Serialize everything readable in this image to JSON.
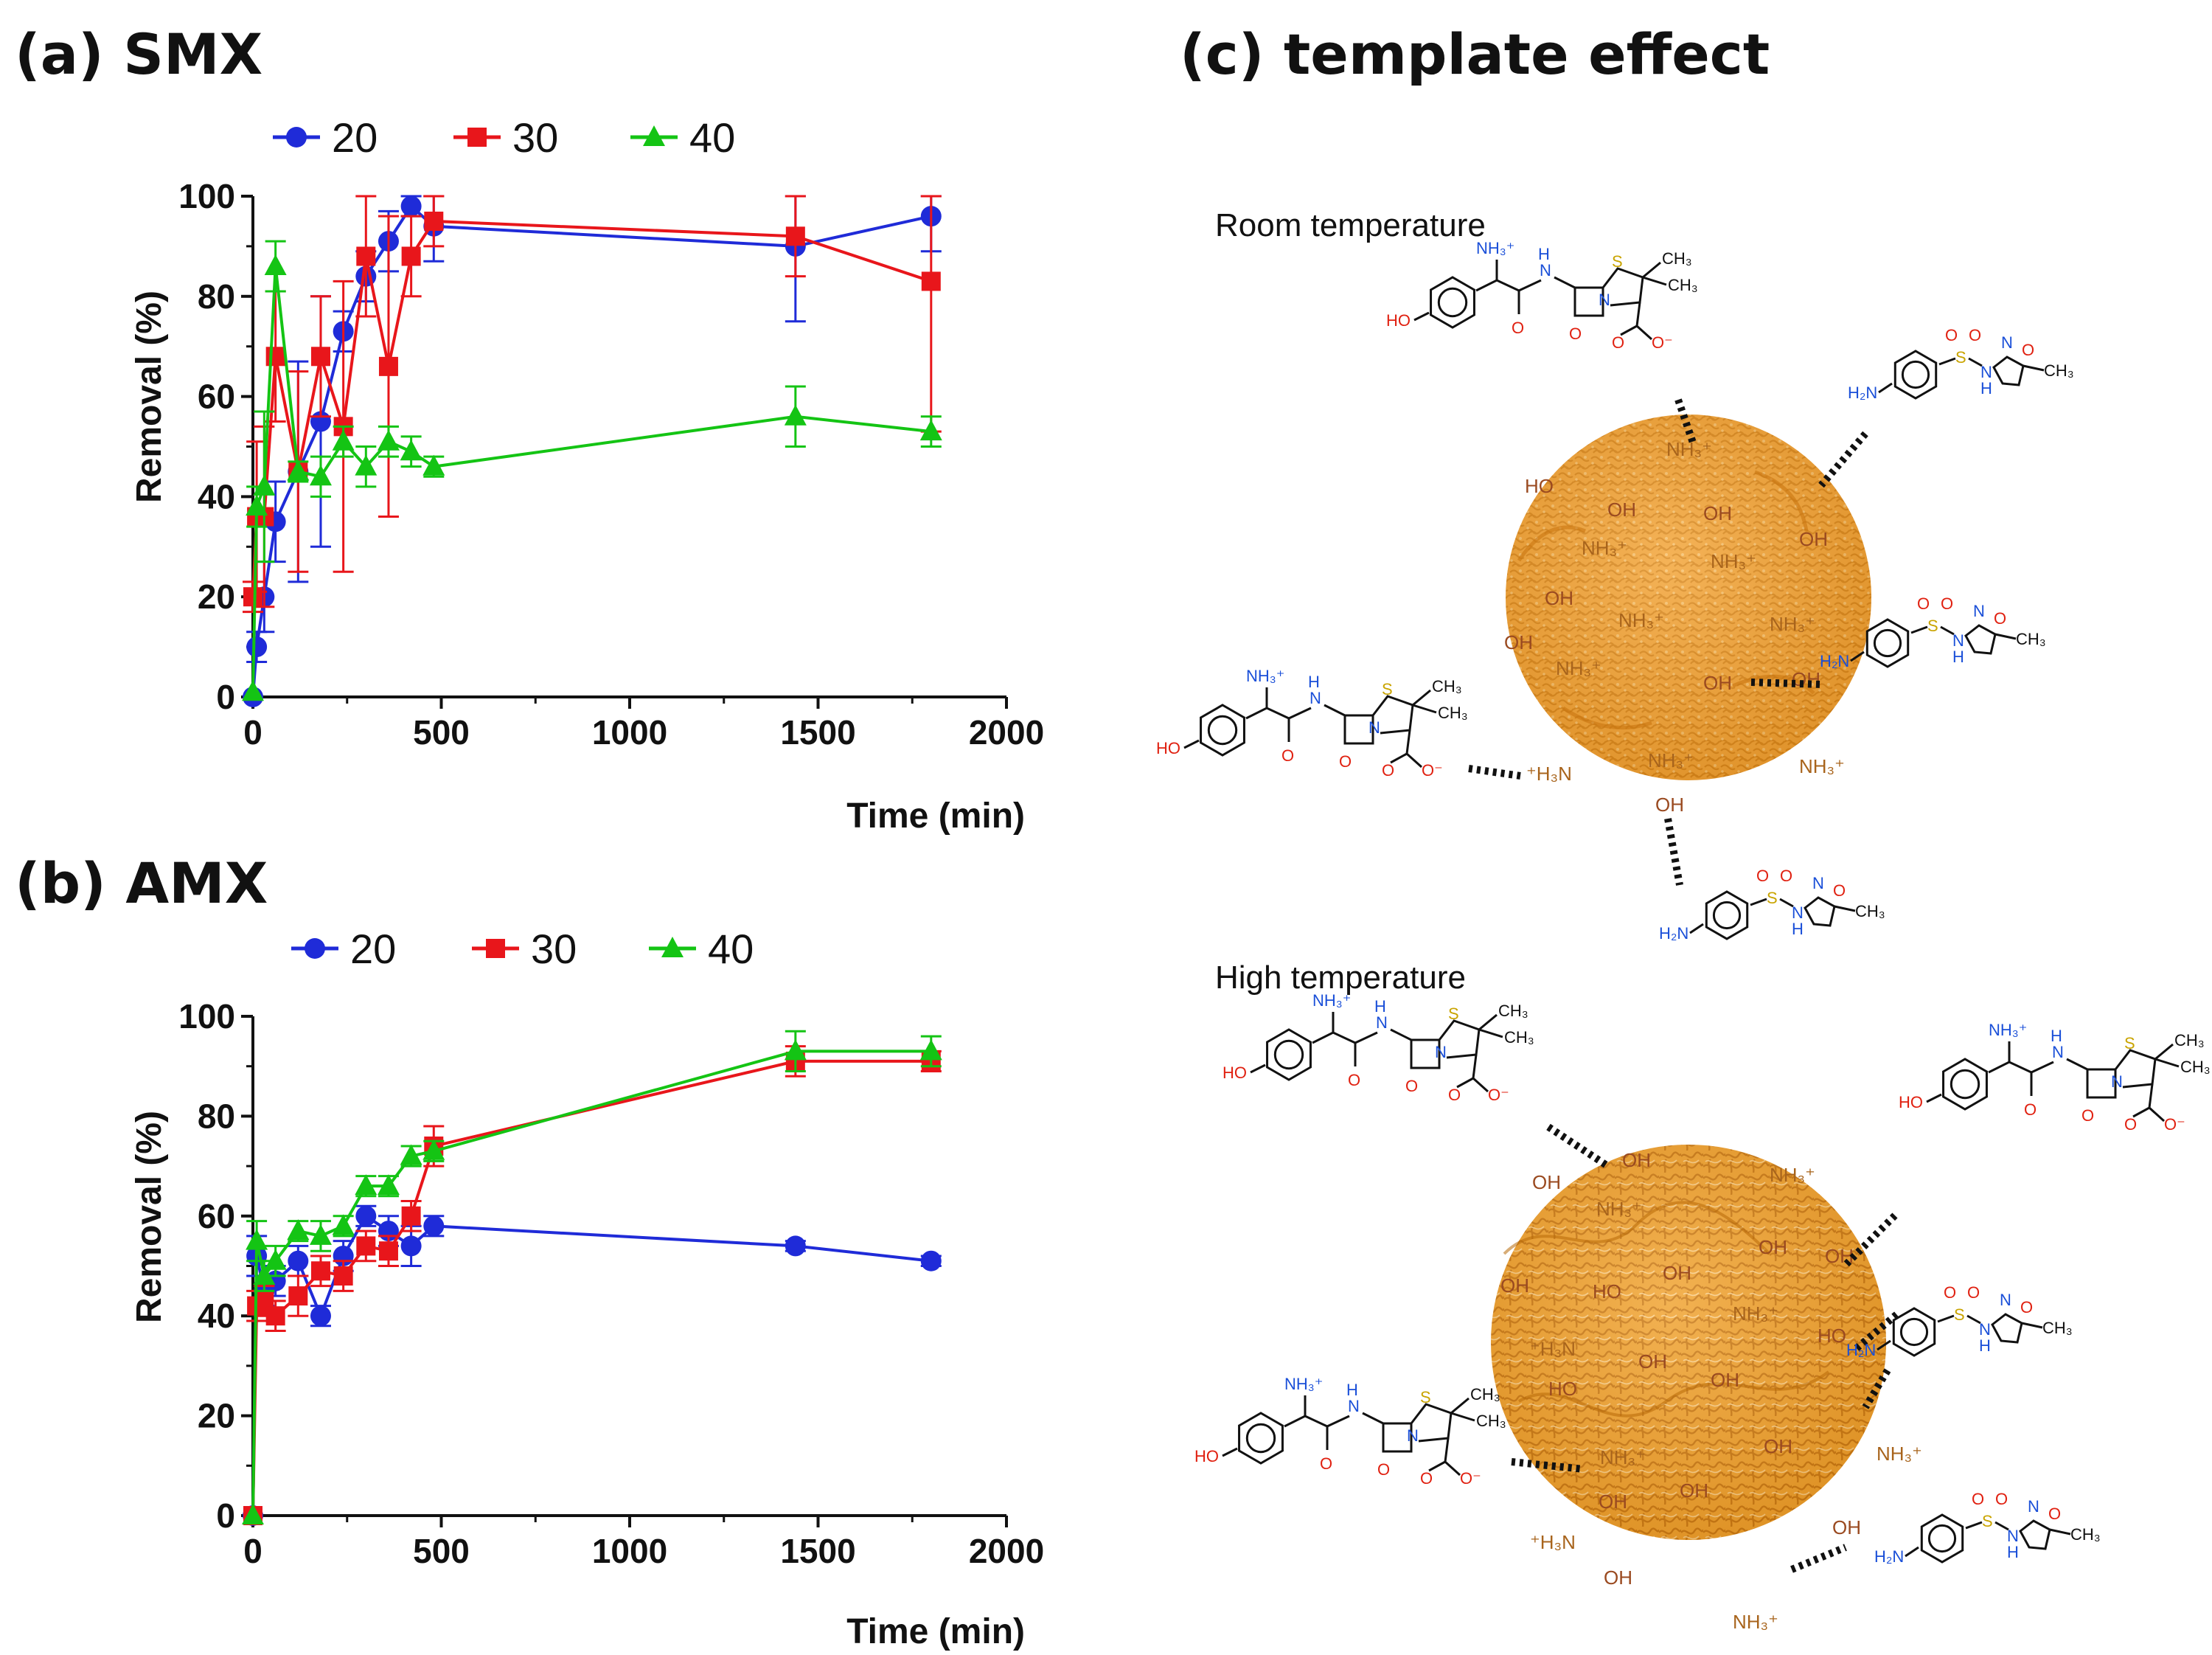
{
  "colors": {
    "s20": "#1f2bd8",
    "s30": "#e8161b",
    "s40": "#14c414",
    "particle": "#f2a233",
    "particle_dark": "#d98618"
  },
  "chart_data": [
    {
      "id": "smx",
      "type": "line",
      "title": "(a) SMX",
      "xlabel": "Time (min)",
      "ylabel": "Removal (%)",
      "xlim": [
        0,
        2000
      ],
      "ylim": [
        0,
        100
      ],
      "xticks": [
        "0",
        "500",
        "1000",
        "1500",
        "2000"
      ],
      "yticks": [
        "0",
        "20",
        "40",
        "60",
        "80",
        "100"
      ],
      "legend_position": "top",
      "series": [
        {
          "name": "20",
          "marker": "circle",
          "x": [
            0,
            10,
            30,
            60,
            120,
            180,
            240,
            300,
            360,
            420,
            480,
            1440,
            1800
          ],
          "y": [
            0,
            10,
            20,
            35,
            45,
            55,
            73,
            84,
            91,
            98,
            94,
            90,
            96
          ],
          "err": [
            0,
            3,
            7,
            8,
            22,
            25,
            4,
            5,
            6,
            2,
            7,
            15,
            7
          ]
        },
        {
          "name": "30",
          "marker": "square",
          "x": [
            0,
            10,
            30,
            60,
            120,
            180,
            240,
            300,
            360,
            420,
            480,
            1440,
            1800
          ],
          "y": [
            20,
            36,
            36,
            68,
            45,
            68,
            54,
            88,
            66,
            88,
            95,
            92,
            83
          ],
          "err": [
            3,
            15,
            18,
            13,
            20,
            12,
            29,
            12,
            30,
            8,
            5,
            8,
            30
          ]
        },
        {
          "name": "40",
          "marker": "triangle",
          "x": [
            0,
            10,
            30,
            60,
            120,
            180,
            240,
            300,
            360,
            420,
            480,
            1440,
            1800
          ],
          "y": [
            1,
            38,
            42,
            86,
            45,
            44,
            51,
            46,
            51,
            49,
            46,
            56,
            53
          ],
          "err": [
            0,
            4,
            15,
            5,
            2,
            4,
            3,
            4,
            3,
            3,
            2,
            6,
            3
          ]
        }
      ]
    },
    {
      "id": "amx",
      "type": "line",
      "title": "(b) AMX",
      "xlabel": "Time (min)",
      "ylabel": "Removal (%)",
      "xlim": [
        0,
        2000
      ],
      "ylim": [
        0,
        100
      ],
      "xticks": [
        "0",
        "500",
        "1000",
        "1500",
        "2000"
      ],
      "yticks": [
        "0",
        "20",
        "40",
        "60",
        "80",
        "100"
      ],
      "legend_position": "top",
      "series": [
        {
          "name": "20",
          "marker": "circle",
          "x": [
            0,
            10,
            30,
            60,
            120,
            180,
            240,
            300,
            360,
            420,
            480,
            1440,
            1800
          ],
          "y": [
            0,
            52,
            45,
            47,
            51,
            40,
            52,
            60,
            57,
            54,
            58,
            54,
            51
          ],
          "err": [
            0,
            4,
            3,
            3,
            3,
            2,
            3,
            2,
            3,
            4,
            2,
            1,
            1
          ]
        },
        {
          "name": "30",
          "marker": "square",
          "x": [
            0,
            10,
            30,
            60,
            120,
            180,
            240,
            300,
            360,
            420,
            480,
            1440,
            1800
          ],
          "y": [
            0,
            42,
            43,
            40,
            44,
            49,
            48,
            54,
            53,
            60,
            74,
            91,
            91
          ],
          "err": [
            0,
            3,
            3,
            3,
            4,
            3,
            3,
            3,
            3,
            3,
            4,
            3,
            2
          ]
        },
        {
          "name": "40",
          "marker": "triangle",
          "x": [
            0,
            10,
            30,
            60,
            120,
            180,
            240,
            300,
            360,
            420,
            480,
            1440,
            1800
          ],
          "y": [
            0,
            55,
            48,
            51,
            57,
            56,
            58,
            66,
            66,
            72,
            73,
            93,
            93
          ],
          "err": [
            0,
            4,
            3,
            3,
            2,
            3,
            2,
            2,
            2,
            2,
            2,
            4,
            3
          ]
        }
      ]
    }
  ],
  "diagram": {
    "title": "(c) template effect",
    "room_label": "Room temperature",
    "high_label": "High temperature",
    "oh": "OH",
    "ho": "HO",
    "nh3": "NH₃⁺",
    "h3n": "⁺H₃N",
    "h2n": "H₂N",
    "n": "N",
    "h": "H",
    "o": "O",
    "s": "S",
    "ch3": "CH₃",
    "coo": "O⁻"
  }
}
